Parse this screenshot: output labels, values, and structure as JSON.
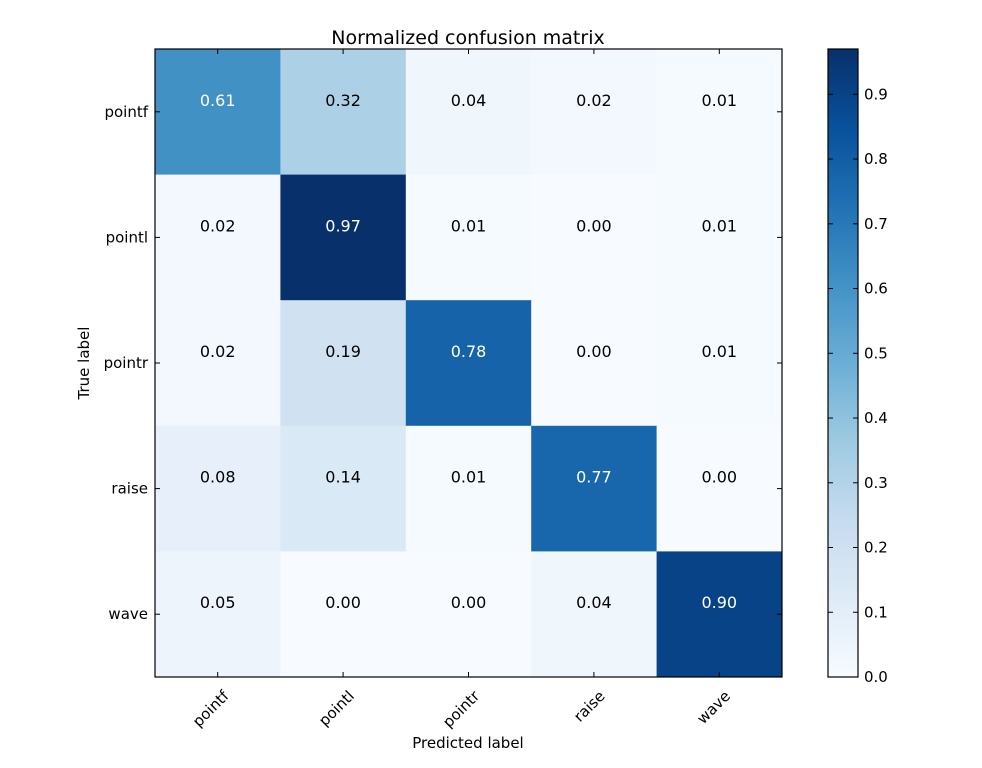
{
  "chart_data": {
    "type": "heatmap",
    "title": "Normalized confusion matrix",
    "xlabel": "Predicted label",
    "ylabel": "True label",
    "x_categories": [
      "pointf",
      "pointl",
      "pointr",
      "raise",
      "wave"
    ],
    "y_categories": [
      "pointf",
      "pointl",
      "pointr",
      "raise",
      "wave"
    ],
    "values": [
      [
        0.61,
        0.32,
        0.04,
        0.02,
        0.01
      ],
      [
        0.02,
        0.97,
        0.01,
        0.0,
        0.01
      ],
      [
        0.02,
        0.19,
        0.78,
        0.0,
        0.01
      ],
      [
        0.08,
        0.14,
        0.01,
        0.77,
        0.0
      ],
      [
        0.05,
        0.0,
        0.0,
        0.04,
        0.9
      ]
    ],
    "value_labels": [
      [
        "0.61",
        "0.32",
        "0.04",
        "0.02",
        "0.01"
      ],
      [
        "0.02",
        "0.97",
        "0.01",
        "0.00",
        "0.01"
      ],
      [
        "0.02",
        "0.19",
        "0.78",
        "0.00",
        "0.01"
      ],
      [
        "0.08",
        "0.14",
        "0.01",
        "0.77",
        "0.00"
      ],
      [
        "0.05",
        "0.00",
        "0.00",
        "0.04",
        "0.90"
      ]
    ],
    "colormap": "Blues",
    "color_range": [
      0.0,
      0.97
    ],
    "colorbar": {
      "ticks": [
        0.0,
        0.1,
        0.2,
        0.3,
        0.4,
        0.5,
        0.6,
        0.7,
        0.8,
        0.9
      ],
      "tick_labels": [
        "0.0",
        "0.1",
        "0.2",
        "0.3",
        "0.4",
        "0.5",
        "0.6",
        "0.7",
        "0.8",
        "0.9"
      ]
    },
    "grid": false,
    "legend": "none"
  }
}
